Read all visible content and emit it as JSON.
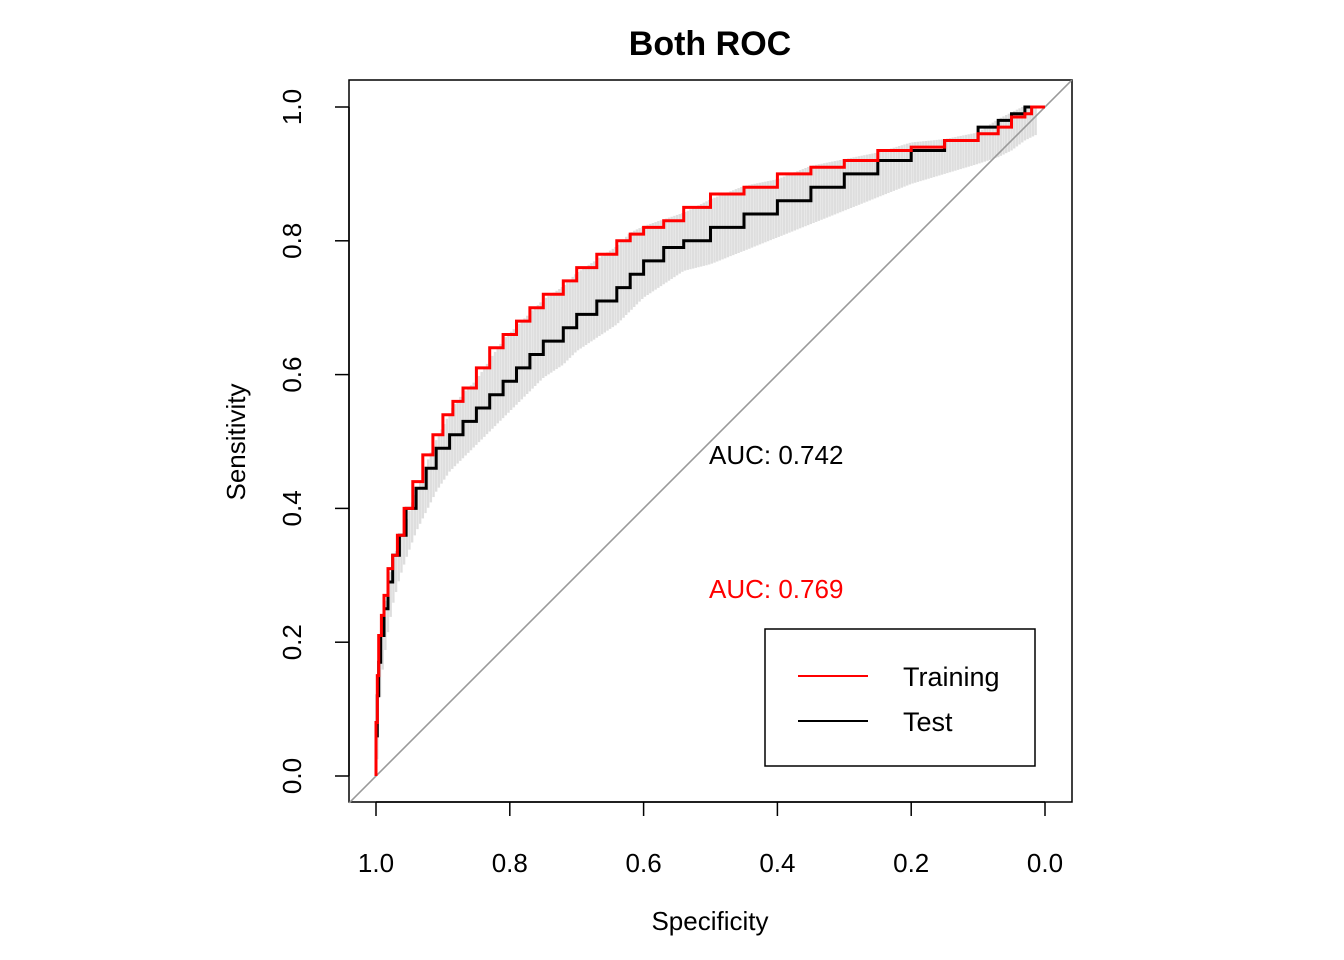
{
  "chart_data": {
    "type": "line",
    "title": "Both ROC",
    "xlabel": "Specificity",
    "ylabel": "Sensitivity",
    "xlim": [
      1.0,
      0.0
    ],
    "ylim": [
      0.0,
      1.0
    ],
    "x_reversed": true,
    "x_ticks": [
      "1.0",
      "0.8",
      "0.6",
      "0.4",
      "0.2",
      "0.0"
    ],
    "y_ticks": [
      "0.0",
      "0.2",
      "0.4",
      "0.6",
      "0.8",
      "1.0"
    ],
    "diagonal_reference": true,
    "grid": false,
    "legend_position": "bottom-right",
    "confidence_band_color": "#d3d3d3",
    "series": [
      {
        "name": "Training",
        "color": "#ff0000",
        "auc_label": "AUC: 0.769",
        "x": [
          1.0,
          0.998,
          0.996,
          0.992,
          0.988,
          0.982,
          0.975,
          0.968,
          0.958,
          0.945,
          0.93,
          0.915,
          0.9,
          0.885,
          0.87,
          0.85,
          0.83,
          0.81,
          0.79,
          0.77,
          0.75,
          0.72,
          0.7,
          0.67,
          0.64,
          0.62,
          0.6,
          0.57,
          0.54,
          0.5,
          0.45,
          0.4,
          0.35,
          0.3,
          0.25,
          0.2,
          0.15,
          0.1,
          0.07,
          0.05,
          0.03,
          0.02,
          0.0
        ],
        "y": [
          0.0,
          0.08,
          0.15,
          0.21,
          0.24,
          0.27,
          0.31,
          0.33,
          0.36,
          0.4,
          0.44,
          0.48,
          0.51,
          0.54,
          0.56,
          0.58,
          0.61,
          0.64,
          0.66,
          0.68,
          0.7,
          0.72,
          0.74,
          0.76,
          0.78,
          0.8,
          0.81,
          0.82,
          0.83,
          0.85,
          0.87,
          0.88,
          0.9,
          0.91,
          0.92,
          0.935,
          0.94,
          0.95,
          0.96,
          0.97,
          0.985,
          0.99,
          1.0
        ]
      },
      {
        "name": "Test",
        "color": "#000000",
        "auc_label": "AUC: 0.742",
        "x": [
          1.0,
          0.998,
          0.996,
          0.993,
          0.988,
          0.982,
          0.975,
          0.965,
          0.955,
          0.94,
          0.925,
          0.91,
          0.89,
          0.87,
          0.85,
          0.83,
          0.81,
          0.79,
          0.77,
          0.75,
          0.72,
          0.7,
          0.67,
          0.64,
          0.62,
          0.6,
          0.57,
          0.54,
          0.5,
          0.45,
          0.4,
          0.35,
          0.3,
          0.25,
          0.2,
          0.15,
          0.1,
          0.07,
          0.05,
          0.03,
          0.0
        ],
        "y": [
          0.0,
          0.06,
          0.12,
          0.17,
          0.21,
          0.25,
          0.29,
          0.33,
          0.36,
          0.4,
          0.43,
          0.46,
          0.49,
          0.51,
          0.53,
          0.55,
          0.57,
          0.59,
          0.61,
          0.63,
          0.65,
          0.67,
          0.69,
          0.71,
          0.73,
          0.75,
          0.77,
          0.79,
          0.8,
          0.82,
          0.84,
          0.86,
          0.88,
          0.9,
          0.92,
          0.935,
          0.95,
          0.97,
          0.98,
          0.99,
          1.0
        ]
      }
    ]
  }
}
